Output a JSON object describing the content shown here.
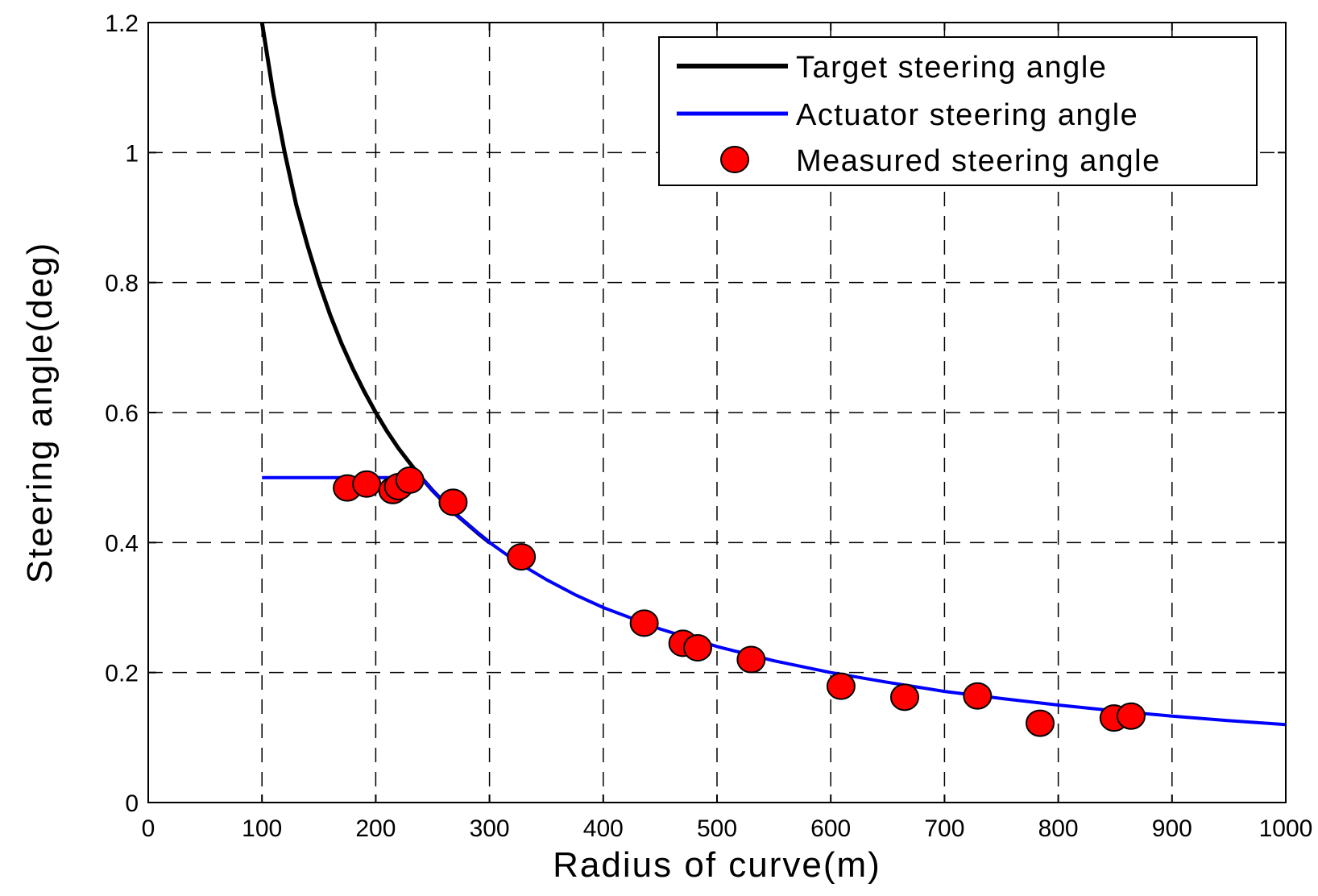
{
  "chart_data": {
    "type": "line",
    "title": "",
    "xlabel": "Radius of curve(m)",
    "ylabel": "Steering angle(deg)",
    "xlim": [
      0,
      1000
    ],
    "ylim": [
      0,
      1.2
    ],
    "xticks": [
      "0",
      "100",
      "200",
      "300",
      "400",
      "500",
      "600",
      "700",
      "800",
      "900",
      "1000"
    ],
    "yticks": [
      "0",
      "0.2",
      "0.4",
      "0.6",
      "0.8",
      "1",
      "1.2"
    ],
    "grid": true,
    "legend_position": "top-right",
    "series": [
      {
        "name": "Target steering angle",
        "kind": "line",
        "color": "#000000",
        "x": [
          100,
          110,
          120,
          130,
          140,
          150,
          160,
          170,
          180,
          190,
          200,
          210,
          220,
          230,
          240,
          250,
          260,
          270,
          280,
          290,
          300
        ],
        "y": [
          1.2,
          1.09,
          1.0,
          0.92,
          0.857,
          0.8,
          0.75,
          0.706,
          0.667,
          0.632,
          0.6,
          0.571,
          0.545,
          0.522,
          0.5,
          0.48,
          0.462,
          0.444,
          0.429,
          0.414,
          0.4
        ]
      },
      {
        "name": "Actuator steering angle",
        "kind": "line",
        "color": "#0000ff",
        "x": [
          100,
          150,
          200,
          240,
          250,
          260,
          270,
          280,
          300,
          325,
          350,
          375,
          400,
          450,
          500,
          550,
          600,
          650,
          700,
          750,
          800,
          850,
          900,
          950,
          1000
        ],
        "y": [
          0.5,
          0.5,
          0.5,
          0.5,
          0.48,
          0.462,
          0.444,
          0.429,
          0.4,
          0.369,
          0.343,
          0.32,
          0.3,
          0.267,
          0.24,
          0.218,
          0.2,
          0.185,
          0.171,
          0.16,
          0.15,
          0.141,
          0.133,
          0.126,
          0.12
        ]
      },
      {
        "name": "Measured steering angle",
        "kind": "scatter",
        "color": "#ff0000",
        "x": [
          175,
          192,
          215,
          220,
          230,
          268,
          328,
          436,
          470,
          483,
          530,
          609,
          665,
          729,
          784,
          849,
          864
        ],
        "y": [
          0.484,
          0.49,
          0.48,
          0.486,
          0.496,
          0.462,
          0.378,
          0.276,
          0.245,
          0.238,
          0.22,
          0.179,
          0.162,
          0.164,
          0.122,
          0.13,
          0.133
        ]
      }
    ]
  }
}
